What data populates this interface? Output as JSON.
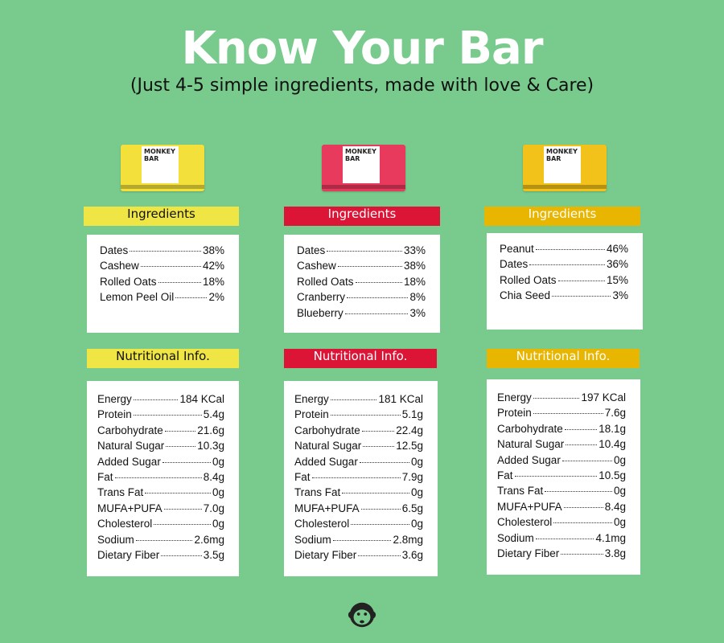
{
  "title": "Know Your Bar",
  "subtitle": "(Just 4-5 simple ingredients, made with love & Care)",
  "brand": "MONKEY BAR",
  "bars": [
    {
      "color": "#efe544",
      "header_text_color": "#111111",
      "pack_color": "#f3e03a",
      "ingredients_label": "Ingredients",
      "nutrition_label": "Nutritional Info.",
      "ingredients": [
        [
          "Dates",
          "38%"
        ],
        [
          "Cashew",
          "42%"
        ],
        [
          "Rolled Oats",
          "18%"
        ],
        [
          "Lemon Peel Oil",
          "2%"
        ]
      ],
      "nutrition": [
        [
          "Energy",
          "184 KCal"
        ],
        [
          "Protein",
          "5.4g"
        ],
        [
          "Carbohydrate",
          "21.6g"
        ],
        [
          "Natural Sugar",
          "10.3g"
        ],
        [
          "Added Sugar",
          "0g"
        ],
        [
          "Fat",
          "8.4g"
        ],
        [
          "Trans Fat",
          "0g"
        ],
        [
          "MUFA+PUFA",
          "7.0g"
        ],
        [
          "Cholesterol",
          "0g"
        ],
        [
          "Sodium",
          "2.6mg"
        ],
        [
          "Dietary Fiber",
          "3.5g"
        ]
      ]
    },
    {
      "color": "#dc1436",
      "header_text_color": "#ffffff",
      "pack_color": "#e83a5c",
      "ingredients_label": "Ingredients",
      "nutrition_label": "Nutritional Info.",
      "ingredients": [
        [
          "Dates",
          "33%"
        ],
        [
          "Cashew",
          "38%"
        ],
        [
          "Rolled Oats",
          "18%"
        ],
        [
          "Cranberry",
          "8%"
        ],
        [
          "Blueberry",
          "3%"
        ]
      ],
      "nutrition": [
        [
          "Energy",
          "181 KCal"
        ],
        [
          "Protein",
          "5.1g"
        ],
        [
          "Carbohydrate",
          "22.4g"
        ],
        [
          "Natural Sugar",
          "12.5g"
        ],
        [
          "Added Sugar",
          "0g"
        ],
        [
          "Fat",
          "7.9g"
        ],
        [
          "Trans Fat",
          "0g"
        ],
        [
          "MUFA+PUFA",
          "6.5g"
        ],
        [
          "Cholesterol",
          "0g"
        ],
        [
          "Sodium",
          "2.8mg"
        ],
        [
          "Dietary Fiber",
          "3.6g"
        ]
      ]
    },
    {
      "color": "#e8b500",
      "header_text_color": "#ffffff",
      "pack_color": "#f2c21a",
      "ingredients_label": "Ingredients",
      "nutrition_label": "Nutritional Info.",
      "ingredients": [
        [
          "Peanut",
          "46%"
        ],
        [
          "Dates",
          "36%"
        ],
        [
          "Rolled Oats",
          "15%"
        ],
        [
          "Chia Seed",
          "3%"
        ]
      ],
      "nutrition": [
        [
          "Energy",
          "197 KCal"
        ],
        [
          "Protein",
          "7.6g"
        ],
        [
          "Carbohydrate",
          "18.1g"
        ],
        [
          "Natural Sugar",
          "10.4g"
        ],
        [
          "Added Sugar",
          "0g"
        ],
        [
          "Fat",
          "10.5g"
        ],
        [
          "Trans Fat",
          "0g"
        ],
        [
          "MUFA+PUFA",
          "8.4g"
        ],
        [
          "Cholesterol",
          "0g"
        ],
        [
          "Sodium",
          "4.1mg"
        ],
        [
          "Dietary Fiber",
          "3.8g"
        ]
      ]
    }
  ]
}
